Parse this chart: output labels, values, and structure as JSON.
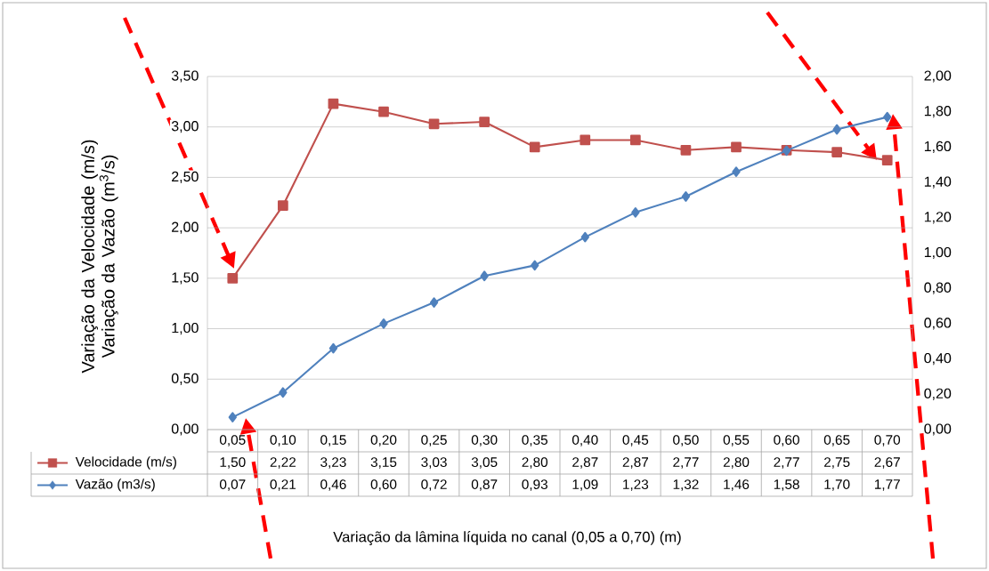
{
  "chart_data": {
    "type": "line",
    "annotations": [
      "Variação da lâmina líquida no canal  (0,05 a 0,70) (m)"
    ],
    "ylabel": "Variação da Velocidade (m/s) Variação da Vazão (m$^{3}$/s)",
    "categories": [
      "0,05",
      "0,10",
      "0,15",
      "0,20",
      "0,25",
      "0,30",
      "0,35",
      "0,40",
      "0,45",
      "0,50",
      "0,55",
      "0,60",
      "0,65",
      "0,70"
    ],
    "series": [
      {
        "name": "Velocidade (m/s)",
        "color": "#c0504d",
        "marker": "square",
        "values": [
          1.5,
          2.22,
          3.23,
          3.15,
          3.03,
          3.05,
          2.8,
          2.87,
          2.87,
          2.77,
          2.8,
          2.77,
          2.75,
          2.67
        ],
        "value_labels": [
          "1,50",
          "2,22",
          "3,23",
          "3,15",
          "3,03",
          "3,05",
          "2,80",
          "2,87",
          "2,87",
          "2,77",
          "2,80",
          "2,77",
          "2,75",
          "2,67"
        ]
      },
      {
        "name": "Vazão (m3/s)",
        "color": "#4f81bd",
        "marker": "diamond",
        "axis": "y2",
        "values": [
          0.07,
          0.21,
          0.46,
          0.6,
          0.72,
          0.87,
          0.93,
          1.09,
          1.23,
          1.32,
          1.46,
          1.58,
          1.7,
          1.77
        ],
        "value_labels": [
          "0,07",
          "0,21",
          "0,46",
          "0,60",
          "0,72",
          "0,87",
          "0,93",
          "1,09",
          "1,23",
          "1,32",
          "1,46",
          "1,58",
          "1,70",
          "1,77"
        ]
      }
    ],
    "ylim": [
      0,
      3.5
    ],
    "yticks": [
      {
        "value": 0,
        "label": "0,00"
      },
      {
        "value": 0.5,
        "label": "0,50"
      },
      {
        "value": 1,
        "label": "1,00"
      },
      {
        "value": 1.5,
        "label": "1,50"
      },
      {
        "value": 2,
        "label": "2,00"
      },
      {
        "value": 2.5,
        "label": "2,50"
      },
      {
        "value": 3,
        "label": "3,00"
      },
      {
        "value": 3.5,
        "label": "3,50"
      }
    ],
    "y2lim": [
      0,
      2
    ],
    "y2ticks": [
      {
        "value": 0,
        "label": "0,00"
      },
      {
        "value": 0.2,
        "label": "0,20"
      },
      {
        "value": 0.4,
        "label": "0,40"
      },
      {
        "value": 0.6,
        "label": "0,60"
      },
      {
        "value": 0.8,
        "label": "0,80"
      },
      {
        "value": 1,
        "label": "1,00"
      },
      {
        "value": 1.2,
        "label": "1,20"
      },
      {
        "value": 1.4,
        "label": "1,40"
      },
      {
        "value": 1.6,
        "label": "1,60"
      },
      {
        "value": 1.8,
        "label": "1,80"
      },
      {
        "value": 2,
        "label": "2,00"
      }
    ],
    "grid": "y",
    "legend": "bottom"
  }
}
